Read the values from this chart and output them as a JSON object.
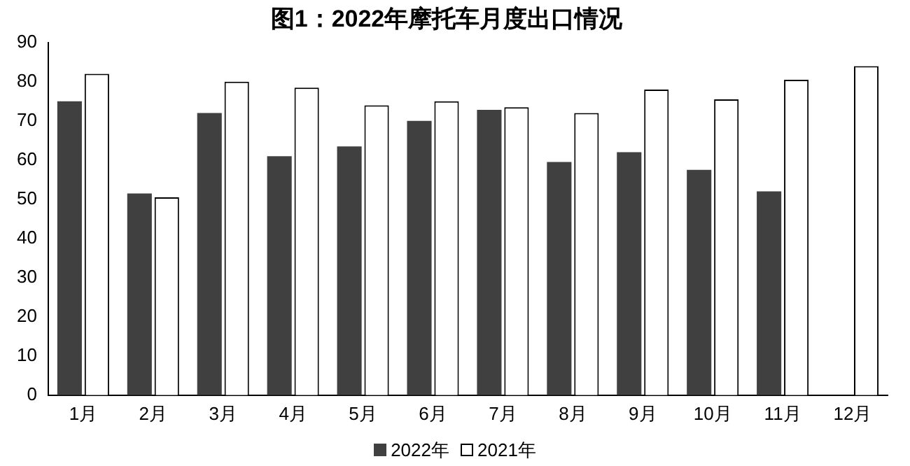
{
  "chart_data": {
    "type": "bar",
    "title": "图1：2022年摩托车月度出口情况",
    "categories": [
      "1月",
      "2月",
      "3月",
      "4月",
      "5月",
      "6月",
      "7月",
      "8月",
      "9月",
      "10月",
      "11月",
      "12月"
    ],
    "series": [
      {
        "name": "2022年",
        "color": "#404040",
        "values": [
          75,
          51.5,
          72,
          61,
          63.5,
          70,
          72.8,
          59.5,
          62,
          57.5,
          52,
          null
        ]
      },
      {
        "name": "2021年",
        "color": "#ffffff",
        "values": [
          82,
          50.5,
          80,
          78.5,
          74,
          75,
          73.5,
          72,
          78,
          75.5,
          80.5,
          84
        ]
      }
    ],
    "ylim": [
      0,
      90
    ],
    "yticks": [
      0,
      10,
      20,
      30,
      40,
      50,
      60,
      70,
      80,
      90
    ],
    "grid": false,
    "legend": "bottom"
  }
}
